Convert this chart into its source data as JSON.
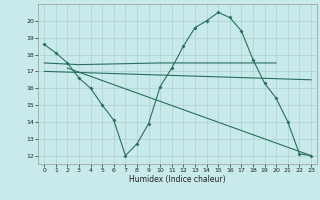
{
  "bg_color": "#c8eaea",
  "grid_color": "#b0d0d0",
  "line_color": "#2a6e60",
  "xlabel": "Humidex (Indice chaleur)",
  "xlim": [
    -0.5,
    23.5
  ],
  "ylim": [
    11.5,
    21.0
  ],
  "yticks": [
    12,
    13,
    14,
    15,
    16,
    17,
    18,
    19,
    20
  ],
  "xticks": [
    0,
    1,
    2,
    3,
    4,
    5,
    6,
    7,
    8,
    9,
    10,
    11,
    12,
    13,
    14,
    15,
    16,
    17,
    18,
    19,
    20,
    21,
    22,
    23
  ],
  "line1_x": [
    0,
    1,
    2,
    3,
    4,
    5,
    6,
    7,
    8,
    9,
    10,
    11,
    12,
    13,
    14,
    15,
    16,
    17,
    18,
    19,
    20,
    21,
    22,
    23
  ],
  "line1_y": [
    18.6,
    18.1,
    17.5,
    16.6,
    16.0,
    15.0,
    14.1,
    12.0,
    12.7,
    13.9,
    16.1,
    17.2,
    18.5,
    19.6,
    20.0,
    20.5,
    20.2,
    19.4,
    17.7,
    16.3,
    15.4,
    14.0,
    12.1,
    12.0
  ],
  "line2_x": [
    0,
    3,
    10,
    11,
    14,
    20
  ],
  "line2_y": [
    17.5,
    17.4,
    17.5,
    17.5,
    17.5,
    17.5
  ],
  "line3_x": [
    0,
    23
  ],
  "line3_y": [
    17.0,
    16.5
  ],
  "line4_x": [
    2,
    23
  ],
  "line4_y": [
    17.2,
    12.0
  ]
}
